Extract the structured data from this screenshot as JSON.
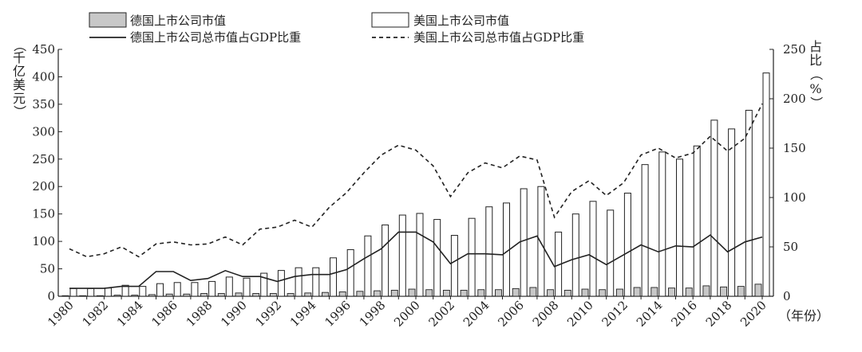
{
  "chart_data": {
    "type": "bar",
    "x": [
      1980,
      1981,
      1982,
      1983,
      1984,
      1985,
      1986,
      1987,
      1988,
      1989,
      1990,
      1991,
      1992,
      1993,
      1994,
      1995,
      1996,
      1997,
      1998,
      1999,
      2000,
      2001,
      2002,
      2003,
      2004,
      2005,
      2006,
      2007,
      2008,
      2009,
      2010,
      2011,
      2012,
      2013,
      2014,
      2015,
      2016,
      2017,
      2018,
      2019,
      2020
    ],
    "x_tick_labels": [
      "1980",
      "1982",
      "1984",
      "1986",
      "1988",
      "1990",
      "1992",
      "1994",
      "1996",
      "1998",
      "2000",
      "2002",
      "2004",
      "2006",
      "2008",
      "2010",
      "2012",
      "2014",
      "2016",
      "2018",
      "2020"
    ],
    "x_unit_label": "（年份）",
    "y_left": {
      "label_chars": [
        "（",
        "千",
        "亿",
        "美",
        "元",
        "）"
      ],
      "ylim": [
        0,
        450
      ],
      "ticks": [
        0,
        50,
        100,
        150,
        200,
        250,
        300,
        350,
        400,
        450
      ]
    },
    "y_right": {
      "label_chars": [
        "占",
        "比",
        "（",
        "%",
        "）"
      ],
      "ylim": [
        0,
        250
      ],
      "ticks": [
        0,
        50,
        100,
        150,
        200,
        250
      ]
    },
    "series": [
      {
        "name": "德国上市公司市值",
        "kind": "bar",
        "axis": "left",
        "fill": "#c8c8c8",
        "values": [
          1,
          1,
          1,
          2,
          2,
          3,
          4,
          4,
          5,
          5,
          6,
          5,
          5,
          5,
          6,
          7,
          8,
          9,
          10,
          11,
          13,
          12,
          11,
          11,
          12,
          12,
          14,
          16,
          12,
          11,
          13,
          12,
          13,
          16,
          16,
          15,
          15,
          19,
          17,
          18,
          22
        ]
      },
      {
        "name": "美国上市公司市值",
        "kind": "bar",
        "axis": "left",
        "fill": "#ffffff",
        "values": [
          14,
          14,
          15,
          20,
          18,
          23,
          25,
          25,
          27,
          35,
          33,
          42,
          47,
          52,
          52,
          70,
          85,
          110,
          130,
          148,
          151,
          140,
          111,
          142,
          163,
          170,
          196,
          200,
          117,
          150,
          173,
          157,
          188,
          240,
          263,
          250,
          274,
          321,
          305,
          339,
          407
        ]
      },
      {
        "name": "德国上市公司总市值占GDP比重",
        "kind": "line",
        "axis": "right",
        "dash": "solid",
        "values": [
          8,
          8,
          8,
          10,
          10,
          25,
          25,
          16,
          18,
          26,
          20,
          20,
          15,
          20,
          22,
          22,
          27,
          38,
          48,
          65,
          65,
          55,
          33,
          43,
          43,
          42,
          55,
          61,
          30,
          37,
          42,
          32,
          42,
          52,
          45,
          51,
          50,
          62,
          45,
          55,
          60
        ]
      },
      {
        "name": "美国上市公司总市值占GDP比重",
        "kind": "line",
        "axis": "right",
        "dash": "dashed",
        "values": [
          48,
          40,
          43,
          50,
          40,
          53,
          55,
          52,
          53,
          60,
          52,
          68,
          70,
          77,
          70,
          90,
          105,
          125,
          143,
          153,
          148,
          132,
          101,
          125,
          135,
          130,
          142,
          138,
          80,
          106,
          117,
          102,
          115,
          143,
          150,
          140,
          145,
          162,
          147,
          160,
          195
        ]
      }
    ],
    "grid": false,
    "legend_position": "top"
  }
}
